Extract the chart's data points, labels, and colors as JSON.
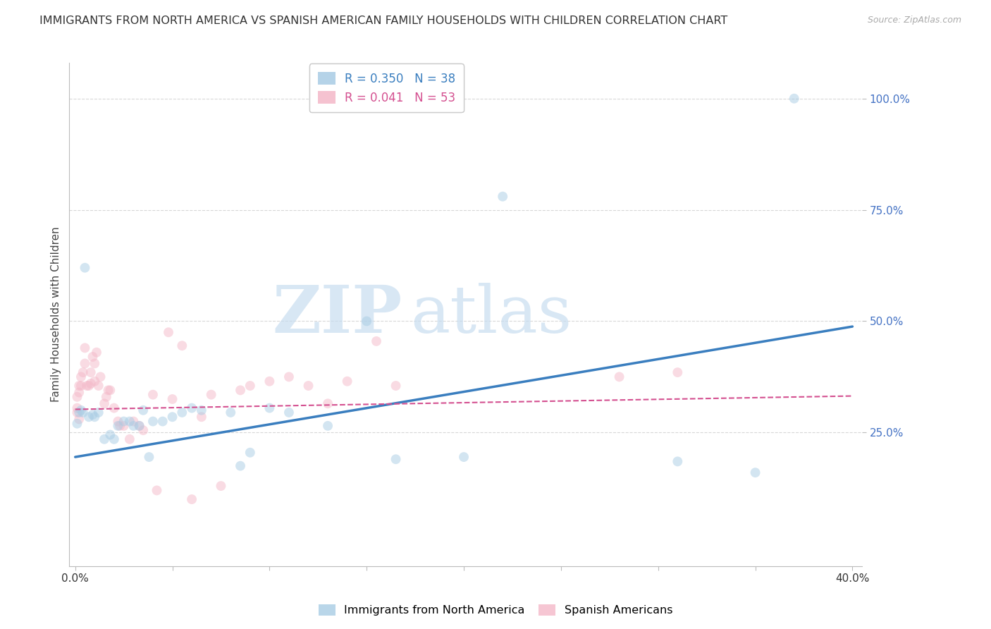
{
  "title": "IMMIGRANTS FROM NORTH AMERICA VS SPANISH AMERICAN FAMILY HOUSEHOLDS WITH CHILDREN CORRELATION CHART",
  "source": "Source: ZipAtlas.com",
  "ylabel": "Family Households with Children",
  "ytick_labels": [
    "25.0%",
    "50.0%",
    "75.0%",
    "100.0%"
  ],
  "ytick_values": [
    0.25,
    0.5,
    0.75,
    1.0
  ],
  "xtick_values": [
    0.0,
    0.05,
    0.1,
    0.15,
    0.2,
    0.25,
    0.3,
    0.35,
    0.4
  ],
  "xlim": [
    -0.003,
    0.405
  ],
  "ylim": [
    -0.05,
    1.08
  ],
  "blue_R": "R = 0.350",
  "blue_N": "N = 38",
  "pink_R": "R = 0.041",
  "pink_N": "N = 53",
  "blue_color": "#a8cce4",
  "pink_color": "#f4b8c8",
  "blue_line_color": "#3a7ebf",
  "pink_line_color": "#d45090",
  "legend_label_blue": "Immigrants from North America",
  "legend_label_pink": "Spanish Americans",
  "blue_scatter_x": [
    0.001,
    0.002,
    0.003,
    0.004,
    0.005,
    0.007,
    0.009,
    0.01,
    0.012,
    0.015,
    0.018,
    0.02,
    0.022,
    0.025,
    0.028,
    0.03,
    0.033,
    0.035,
    0.038,
    0.04,
    0.045,
    0.05,
    0.055,
    0.06,
    0.065,
    0.08,
    0.085,
    0.09,
    0.1,
    0.11,
    0.13,
    0.15,
    0.165,
    0.2,
    0.22,
    0.31,
    0.35,
    0.37
  ],
  "blue_scatter_y": [
    0.27,
    0.295,
    0.3,
    0.295,
    0.62,
    0.285,
    0.29,
    0.285,
    0.295,
    0.235,
    0.245,
    0.235,
    0.265,
    0.275,
    0.275,
    0.265,
    0.265,
    0.3,
    0.195,
    0.275,
    0.275,
    0.285,
    0.295,
    0.305,
    0.3,
    0.295,
    0.175,
    0.205,
    0.305,
    0.295,
    0.265,
    0.5,
    0.19,
    0.195,
    0.78,
    0.185,
    0.16,
    1.0
  ],
  "pink_scatter_x": [
    0.001,
    0.001,
    0.001,
    0.002,
    0.002,
    0.002,
    0.003,
    0.003,
    0.004,
    0.005,
    0.005,
    0.006,
    0.007,
    0.008,
    0.008,
    0.009,
    0.01,
    0.01,
    0.011,
    0.012,
    0.013,
    0.015,
    0.016,
    0.017,
    0.018,
    0.02,
    0.022,
    0.023,
    0.025,
    0.028,
    0.03,
    0.033,
    0.035,
    0.04,
    0.042,
    0.048,
    0.05,
    0.055,
    0.06,
    0.065,
    0.07,
    0.075,
    0.085,
    0.09,
    0.1,
    0.11,
    0.12,
    0.13,
    0.14,
    0.155,
    0.165,
    0.28,
    0.31
  ],
  "pink_scatter_y": [
    0.295,
    0.305,
    0.33,
    0.28,
    0.34,
    0.355,
    0.355,
    0.375,
    0.385,
    0.405,
    0.44,
    0.355,
    0.355,
    0.36,
    0.385,
    0.42,
    0.365,
    0.405,
    0.43,
    0.355,
    0.375,
    0.315,
    0.33,
    0.345,
    0.345,
    0.305,
    0.275,
    0.265,
    0.265,
    0.235,
    0.275,
    0.265,
    0.255,
    0.335,
    0.12,
    0.475,
    0.325,
    0.445,
    0.1,
    0.285,
    0.335,
    0.13,
    0.345,
    0.355,
    0.365,
    0.375,
    0.355,
    0.315,
    0.365,
    0.455,
    0.355,
    0.375,
    0.385
  ],
  "blue_trend_x": [
    0.0,
    0.4
  ],
  "blue_trend_y": [
    0.195,
    0.488
  ],
  "pink_trend_x": [
    0.0,
    0.4
  ],
  "pink_trend_y": [
    0.302,
    0.332
  ],
  "watermark_zip": "ZIP",
  "watermark_atlas": "atlas",
  "grid_color": "#d8d8d8",
  "title_fontsize": 11.5,
  "axis_label_fontsize": 11,
  "tick_fontsize": 11,
  "marker_size": 100,
  "marker_alpha": 0.5,
  "background_color": "#ffffff"
}
